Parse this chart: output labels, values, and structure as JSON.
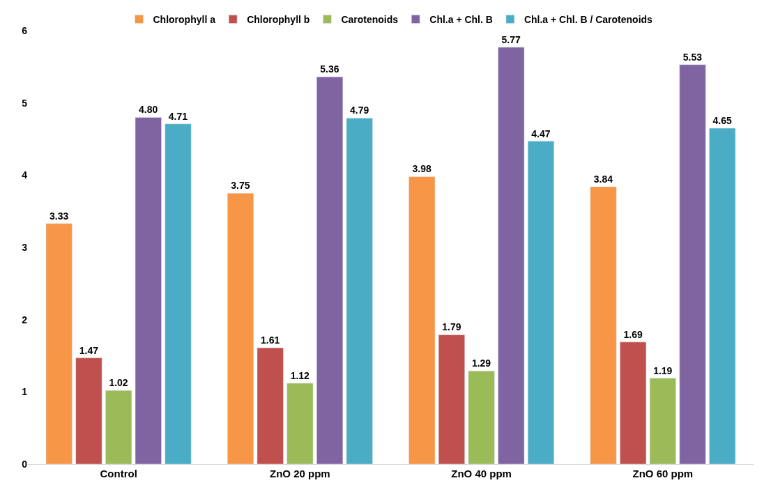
{
  "chart_data": {
    "type": "bar",
    "categories": [
      "Control",
      "ZnO 20 ppm",
      "ZnO 40 ppm",
      "ZnO 60 ppm"
    ],
    "series": [
      {
        "name": "Chlorophyll a",
        "color": "#f79646",
        "values": [
          3.33,
          3.75,
          3.98,
          3.84
        ],
        "value_labels": [
          "3.33",
          "3.75",
          "3.98",
          "3.84"
        ]
      },
      {
        "name": "Chlorophyll b",
        "color": "#c0504d",
        "values": [
          1.47,
          1.61,
          1.79,
          1.69
        ],
        "value_labels": [
          "1.47",
          "1.61",
          "1.79",
          "1.69"
        ]
      },
      {
        "name": "Carotenoids",
        "color": "#9bbb59",
        "values": [
          1.02,
          1.12,
          1.29,
          1.19
        ],
        "value_labels": [
          "1.02",
          "1.12",
          "1.29",
          "1.19"
        ]
      },
      {
        "name": "Chl.a + Chl. B",
        "color": "#8064a2",
        "values": [
          4.8,
          5.36,
          5.77,
          5.53
        ],
        "value_labels": [
          "4.80",
          "5.36",
          "5.77",
          "5.53"
        ]
      },
      {
        "name": "Chl.a + Chl. B / Carotenoids",
        "color": "#4bacc6",
        "values": [
          4.71,
          4.79,
          4.47,
          4.65
        ],
        "value_labels": [
          "4.71",
          "4.79",
          "4.47",
          "4.65"
        ]
      }
    ],
    "ylim": [
      0,
      6
    ],
    "yticks": [
      0,
      1,
      2,
      3,
      4,
      5,
      6
    ],
    "legend": "top"
  }
}
